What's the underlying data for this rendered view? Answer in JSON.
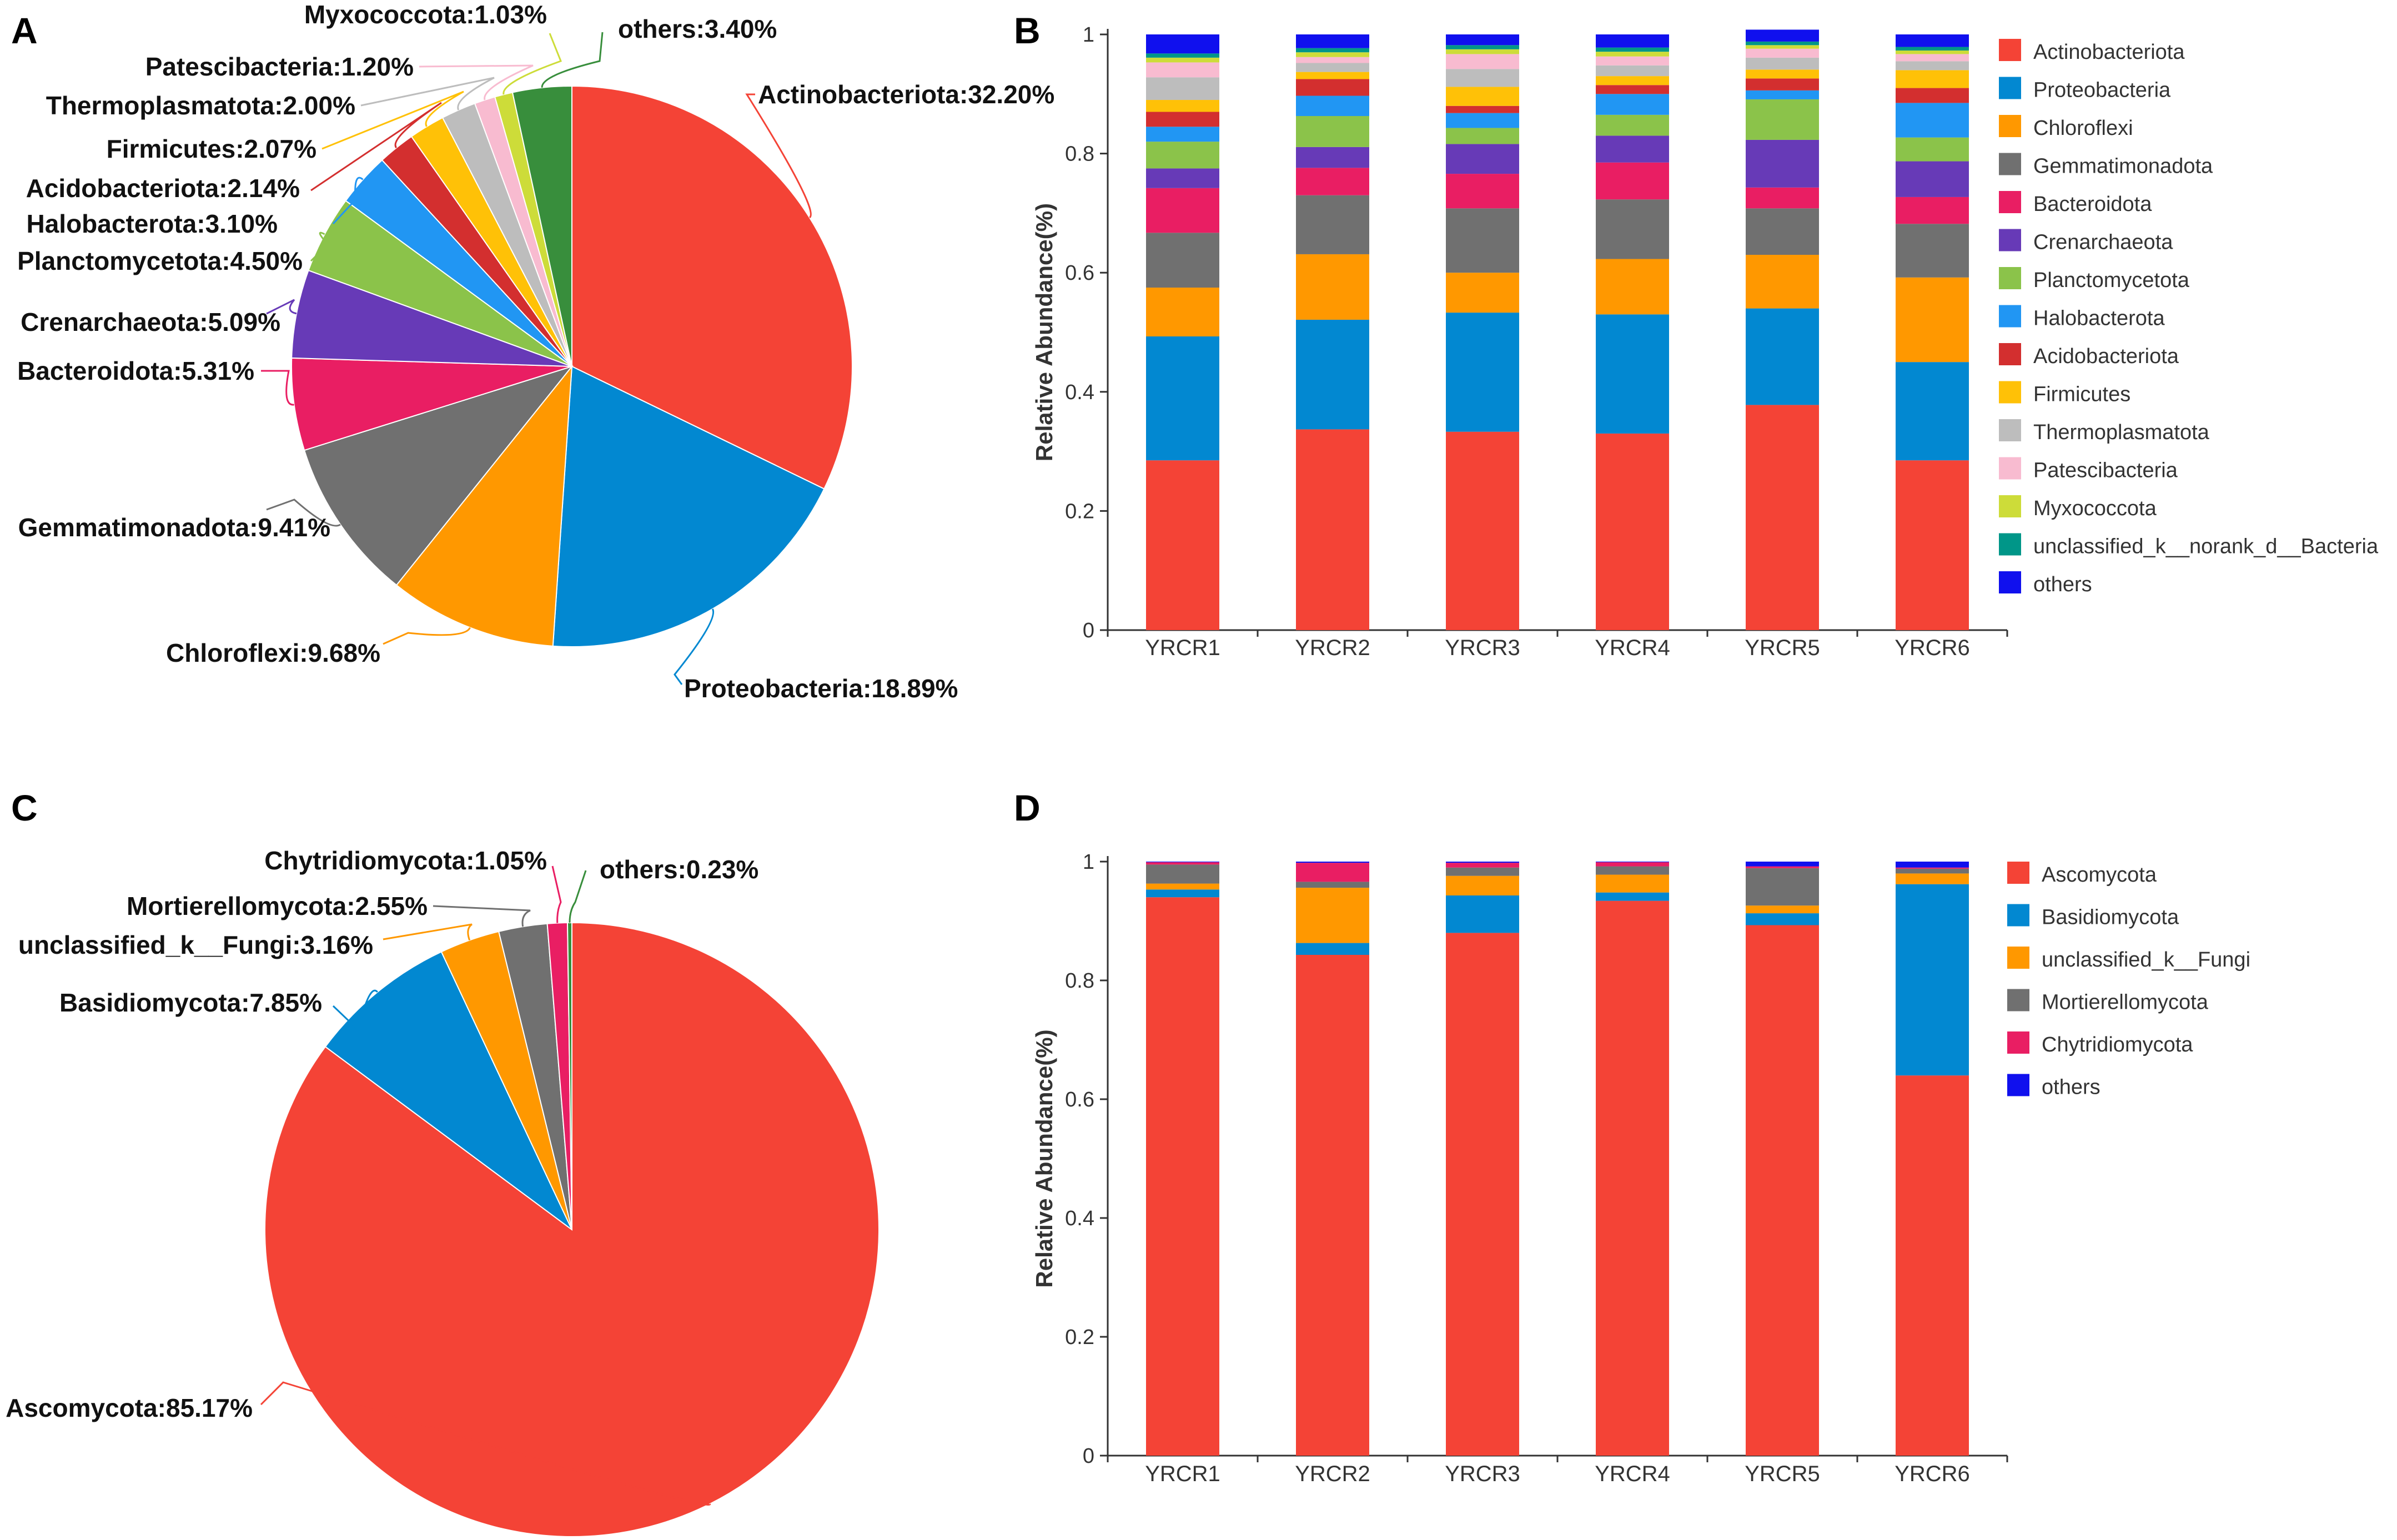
{
  "panels": {
    "A": "A",
    "B": "B",
    "C": "C",
    "D": "D"
  },
  "colors": {
    "Actinobacteriota": "#f44336",
    "Proteobacteria": "#0288d1",
    "Chloroflexi": "#ff9800",
    "Gemmatimonadota": "#707070",
    "Bacteroidota": "#e91e63",
    "Crenarchaeota": "#673ab7",
    "Planctomycetota": "#8bc34a",
    "Halobacterota": "#2196f3",
    "Acidobacteriota": "#d32f2f",
    "Firmicutes": "#ffc107",
    "Thermoplasmatota": "#bdbdbd",
    "Patescibacteria": "#f8bbd0",
    "Myxococcota": "#cddc39",
    "unclassified_k__norank_d__Bacteria": "#009688",
    "others_bact": "#1010ee",
    "others_pie_a": "#388e3c",
    "Ascomycota": "#f44336",
    "Basidiomycota": "#0288d1",
    "unclassified_k__Fungi": "#ff9800",
    "Mortierellomycota": "#707070",
    "Chytridiomycota": "#e91e63",
    "others_fungi": "#1010ee",
    "others_pie_c": "#388e3c"
  },
  "chart_data": [
    {
      "panel": "A",
      "type": "pie",
      "slices": [
        {
          "name": "Actinobacteriota",
          "value": 32.2,
          "label": "Actinobacteriota:32.20%",
          "color_key": "Actinobacteriota"
        },
        {
          "name": "Proteobacteria",
          "value": 18.89,
          "label": "Proteobacteria:18.89%",
          "color_key": "Proteobacteria"
        },
        {
          "name": "Chloroflexi",
          "value": 9.68,
          "label": "Chloroflexi:9.68%",
          "color_key": "Chloroflexi"
        },
        {
          "name": "Gemmatimonadota",
          "value": 9.41,
          "label": "Gemmatimonadota:9.41%",
          "color_key": "Gemmatimonadota"
        },
        {
          "name": "Bacteroidota",
          "value": 5.31,
          "label": "Bacteroidota:5.31%",
          "color_key": "Bacteroidota"
        },
        {
          "name": "Crenarchaeota",
          "value": 5.09,
          "label": "Crenarchaeota:5.09%",
          "color_key": "Crenarchaeota"
        },
        {
          "name": "Planctomycetota",
          "value": 4.5,
          "label": "Planctomycetota:4.50%",
          "color_key": "Planctomycetota"
        },
        {
          "name": "Halobacterota",
          "value": 3.1,
          "label": "Halobacterota:3.10%",
          "color_key": "Halobacterota"
        },
        {
          "name": "Acidobacteriota",
          "value": 2.14,
          "label": "Acidobacteriota:2.14%",
          "color_key": "Acidobacteriota"
        },
        {
          "name": "Firmicutes",
          "value": 2.07,
          "label": "Firmicutes:2.07%",
          "color_key": "Firmicutes"
        },
        {
          "name": "Thermoplasmatota",
          "value": 2.0,
          "label": "Thermoplasmatota:2.00%",
          "color_key": "Thermoplasmatota"
        },
        {
          "name": "Patescibacteria",
          "value": 1.2,
          "label": "Patescibacteria:1.20%",
          "color_key": "Patescibacteria"
        },
        {
          "name": "Myxococcota",
          "value": 1.03,
          "label": "Myxococcota:1.03%",
          "color_key": "Myxococcota"
        },
        {
          "name": "others",
          "value": 3.4,
          "label": "others:3.40%",
          "color_key": "others_pie_a"
        }
      ]
    },
    {
      "panel": "B",
      "type": "bar",
      "stacked": true,
      "ylabel": "Relative Abundance(%)",
      "ylim": [
        0,
        1
      ],
      "yticks": [
        "0",
        "0.2",
        "0.4",
        "0.6",
        "0.8",
        "1"
      ],
      "categories": [
        "YRCR1",
        "YRCR2",
        "YRCR3",
        "YRCR4",
        "YRCR5",
        "YRCR6"
      ],
      "series": [
        {
          "name": "Actinobacteriota",
          "color_key": "Actinobacteriota",
          "values": [
            0.285,
            0.337,
            0.333,
            0.33,
            0.378,
            0.285
          ]
        },
        {
          "name": "Proteobacteria",
          "color_key": "Proteobacteria",
          "values": [
            0.208,
            0.184,
            0.2,
            0.2,
            0.162,
            0.165
          ]
        },
        {
          "name": "Chloroflexi",
          "color_key": "Chloroflexi",
          "values": [
            0.082,
            0.11,
            0.067,
            0.093,
            0.09,
            0.142
          ]
        },
        {
          "name": "Gemmatimonadota",
          "color_key": "Gemmatimonadota",
          "values": [
            0.092,
            0.099,
            0.108,
            0.1,
            0.078,
            0.09
          ]
        },
        {
          "name": "Bacteroidota",
          "color_key": "Bacteroidota",
          "values": [
            0.075,
            0.046,
            0.058,
            0.062,
            0.035,
            0.045
          ]
        },
        {
          "name": "Crenarchaeota",
          "color_key": "Crenarchaeota",
          "values": [
            0.033,
            0.035,
            0.05,
            0.045,
            0.08,
            0.06
          ]
        },
        {
          "name": "Planctomycetota",
          "color_key": "Planctomycetota",
          "values": [
            0.045,
            0.052,
            0.027,
            0.035,
            0.068,
            0.04
          ]
        },
        {
          "name": "Halobacterota",
          "color_key": "Halobacterota",
          "values": [
            0.025,
            0.034,
            0.025,
            0.035,
            0.015,
            0.058
          ]
        },
        {
          "name": "Acidobacteriota",
          "color_key": "Acidobacteriota",
          "values": [
            0.025,
            0.028,
            0.012,
            0.015,
            0.02,
            0.025
          ]
        },
        {
          "name": "Firmicutes",
          "color_key": "Firmicutes",
          "values": [
            0.02,
            0.012,
            0.032,
            0.015,
            0.015,
            0.03
          ]
        },
        {
          "name": "Thermoplasmatota",
          "color_key": "Thermoplasmatota",
          "values": [
            0.038,
            0.015,
            0.03,
            0.018,
            0.02,
            0.015
          ]
        },
        {
          "name": "Patescibacteria",
          "color_key": "Patescibacteria",
          "values": [
            0.025,
            0.01,
            0.025,
            0.015,
            0.015,
            0.012
          ]
        },
        {
          "name": "Myxococcota",
          "color_key": "Myxococcota",
          "values": [
            0.008,
            0.008,
            0.008,
            0.008,
            0.006,
            0.006
          ]
        },
        {
          "name": "unclassified_k__norank_d__Bacteria",
          "color_key": "unclassified_k__norank_d__Bacteria",
          "values": [
            0.007,
            0.007,
            0.007,
            0.007,
            0.006,
            0.006
          ]
        },
        {
          "name": "others",
          "color_key": "others_bact",
          "values": [
            0.032,
            0.023,
            0.018,
            0.022,
            0.02,
            0.021
          ]
        }
      ]
    },
    {
      "panel": "C",
      "type": "pie",
      "slices": [
        {
          "name": "Ascomycota",
          "value": 85.17,
          "label": "Ascomycota:85.17%",
          "color_key": "Ascomycota"
        },
        {
          "name": "Basidiomycota",
          "value": 7.85,
          "label": "Basidiomycota:7.85%",
          "color_key": "Basidiomycota"
        },
        {
          "name": "unclassified_k__Fungi",
          "value": 3.16,
          "label": "unclassified_k__Fungi:3.16%",
          "color_key": "unclassified_k__Fungi"
        },
        {
          "name": "Mortierellomycota",
          "value": 2.55,
          "label": "Mortierellomycota:2.55%",
          "color_key": "Mortierellomycota"
        },
        {
          "name": "Chytridiomycota",
          "value": 1.05,
          "label": "Chytridiomycota:1.05%",
          "color_key": "Chytridiomycota"
        },
        {
          "name": "others",
          "value": 0.23,
          "label": "others:0.23%",
          "color_key": "others_pie_c"
        }
      ]
    },
    {
      "panel": "D",
      "type": "bar",
      "stacked": true,
      "ylabel": "Relative Abundance(%)",
      "ylim": [
        0,
        1
      ],
      "yticks": [
        "0",
        "0.2",
        "0.4",
        "0.6",
        "0.8",
        "1"
      ],
      "categories": [
        "YRCR1",
        "YRCR2",
        "YRCR3",
        "YRCR4",
        "YRCR5",
        "YRCR6"
      ],
      "series": [
        {
          "name": "Ascomycota",
          "color_key": "Ascomycota",
          "values": [
            0.94,
            0.843,
            0.88,
            0.934,
            0.893,
            0.64
          ]
        },
        {
          "name": "Basidiomycota",
          "color_key": "Basidiomycota",
          "values": [
            0.013,
            0.02,
            0.063,
            0.014,
            0.02,
            0.322
          ]
        },
        {
          "name": "unclassified_k__Fungi",
          "color_key": "unclassified_k__Fungi",
          "values": [
            0.01,
            0.093,
            0.033,
            0.03,
            0.013,
            0.018
          ]
        },
        {
          "name": "Mortierellomycota",
          "color_key": "Mortierellomycota",
          "values": [
            0.032,
            0.01,
            0.014,
            0.014,
            0.063,
            0.008
          ]
        },
        {
          "name": "Chytridiomycota",
          "color_key": "Chytridiomycota",
          "values": [
            0.004,
            0.032,
            0.008,
            0.007,
            0.003,
            0.002
          ]
        },
        {
          "name": "others",
          "color_key": "others_fungi",
          "values": [
            0.001,
            0.002,
            0.002,
            0.001,
            0.008,
            0.01
          ]
        }
      ]
    }
  ]
}
